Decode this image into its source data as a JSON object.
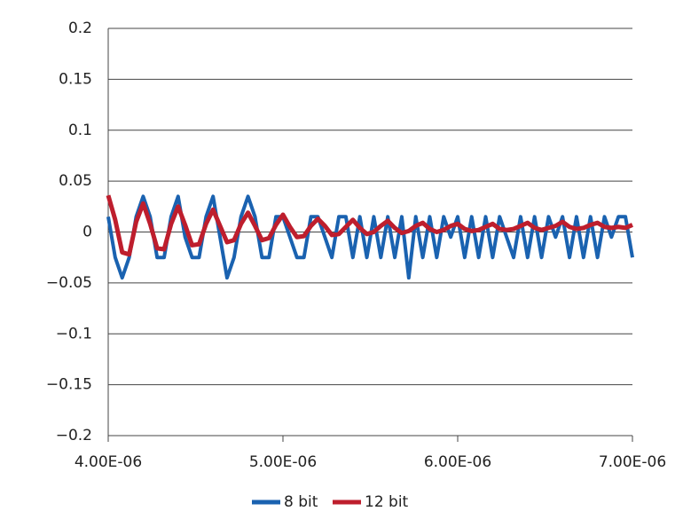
{
  "chart_data": {
    "type": "line",
    "x": [
      4e-06,
      4.04e-06,
      4.08e-06,
      4.12e-06,
      4.16e-06,
      4.2e-06,
      4.24e-06,
      4.28e-06,
      4.32e-06,
      4.36e-06,
      4.4e-06,
      4.44e-06,
      4.48e-06,
      4.52e-06,
      4.56e-06,
      4.6e-06,
      4.64e-06,
      4.68e-06,
      4.72e-06,
      4.76e-06,
      4.8e-06,
      4.84e-06,
      4.88e-06,
      4.92e-06,
      4.96e-06,
      5e-06,
      5.04e-06,
      5.08e-06,
      5.12e-06,
      5.16e-06,
      5.2e-06,
      5.24e-06,
      5.28e-06,
      5.32e-06,
      5.36e-06,
      5.4e-06,
      5.44e-06,
      5.48e-06,
      5.52e-06,
      5.56e-06,
      5.6e-06,
      5.64e-06,
      5.68e-06,
      5.72e-06,
      5.76e-06,
      5.8e-06,
      5.84e-06,
      5.88e-06,
      5.92e-06,
      5.96e-06,
      6e-06,
      6.04e-06,
      6.08e-06,
      6.12e-06,
      6.16e-06,
      6.2e-06,
      6.24e-06,
      6.28e-06,
      6.32e-06,
      6.36e-06,
      6.4e-06,
      6.44e-06,
      6.48e-06,
      6.52e-06,
      6.56e-06,
      6.6e-06,
      6.64e-06,
      6.68e-06,
      6.72e-06,
      6.76e-06,
      6.8e-06,
      6.84e-06,
      6.88e-06,
      6.92e-06,
      6.96e-06,
      7e-06
    ],
    "series": [
      {
        "name": "8 bit",
        "color": "#1a62b0",
        "values": [
          0.015,
          -0.025,
          -0.045,
          -0.025,
          0.015,
          0.035,
          0.015,
          -0.025,
          -0.025,
          0.015,
          0.035,
          -0.005,
          -0.025,
          -0.025,
          0.015,
          0.035,
          -0.005,
          -0.045,
          -0.025,
          0.015,
          0.035,
          0.015,
          -0.025,
          -0.025,
          0.015,
          0.015,
          -0.005,
          -0.025,
          -0.025,
          0.015,
          0.015,
          -0.005,
          -0.025,
          0.015,
          0.015,
          -0.025,
          0.015,
          -0.025,
          0.015,
          -0.025,
          0.015,
          -0.025,
          0.015,
          -0.045,
          0.015,
          -0.025,
          0.015,
          -0.025,
          0.015,
          -0.005,
          0.015,
          -0.025,
          0.015,
          -0.025,
          0.015,
          -0.025,
          0.015,
          -0.005,
          -0.025,
          0.015,
          -0.025,
          0.015,
          -0.025,
          0.015,
          -0.005,
          0.015,
          -0.025,
          0.015,
          -0.025,
          0.015,
          -0.025,
          0.015,
          -0.005,
          0.015,
          0.015,
          -0.025
        ]
      },
      {
        "name": "12 bit",
        "color": "#be1e2d",
        "values": [
          0.036,
          0.012,
          -0.02,
          -0.022,
          0.01,
          0.028,
          0.008,
          -0.016,
          -0.017,
          0.008,
          0.025,
          0.007,
          -0.013,
          -0.012,
          0.008,
          0.022,
          0.006,
          -0.01,
          -0.008,
          0.008,
          0.019,
          0.006,
          -0.008,
          -0.006,
          0.007,
          0.017,
          0.005,
          -0.005,
          -0.004,
          0.006,
          0.013,
          0.006,
          -0.003,
          -0.002,
          0.005,
          0.012,
          0.004,
          -0.002,
          0.0,
          0.006,
          0.011,
          0.004,
          -0.001,
          0.001,
          0.006,
          0.009,
          0.003,
          0.0,
          0.002,
          0.006,
          0.008,
          0.003,
          0.001,
          0.002,
          0.005,
          0.008,
          0.003,
          0.002,
          0.003,
          0.006,
          0.009,
          0.004,
          0.002,
          0.004,
          0.006,
          0.01,
          0.005,
          0.003,
          0.004,
          0.007,
          0.009,
          0.005,
          0.004,
          0.005,
          0.004,
          0.007
        ]
      }
    ],
    "xlim": [
      4e-06,
      7e-06
    ],
    "xticks": [
      {
        "value": 4e-06,
        "label": "4.00E-06"
      },
      {
        "value": 5e-06,
        "label": "5.00E-06"
      },
      {
        "value": 6e-06,
        "label": "6.00E-06"
      },
      {
        "value": 7e-06,
        "label": "7.00E-06"
      }
    ],
    "ylim": [
      -0.2,
      0.2
    ],
    "yticks": [
      0.2,
      0.15,
      0.1,
      0.05,
      0,
      {
        "value": -0.05,
        "label": "−0.05"
      },
      {
        "value": -0.1,
        "label": "−0.1"
      },
      {
        "value": -0.15,
        "label": "−0.15"
      },
      {
        "value": -0.2,
        "label": "−0.2"
      }
    ],
    "grid": true,
    "legend": "bottom"
  }
}
